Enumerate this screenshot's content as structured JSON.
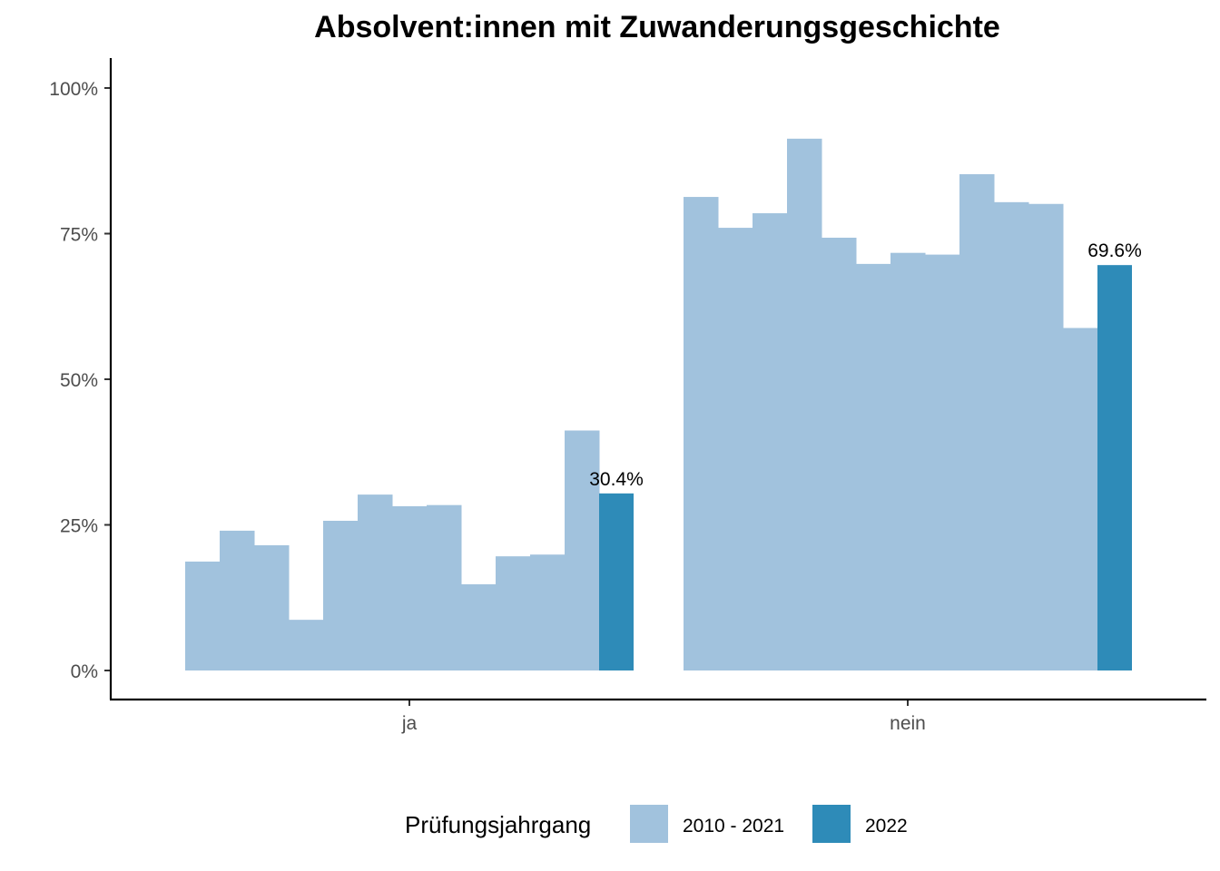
{
  "chart_data": {
    "type": "bar",
    "title": "Absolvent:innen mit Zuwanderungsgeschichte",
    "xlabel": "",
    "ylabel": "",
    "categories": [
      "ja",
      "nein"
    ],
    "ylim": [
      0,
      1
    ],
    "y_ticks": [
      {
        "value": 0,
        "label": "0%"
      },
      {
        "value": 0.25,
        "label": "25%"
      },
      {
        "value": 0.5,
        "label": "50%"
      },
      {
        "value": 0.75,
        "label": "75%"
      },
      {
        "value": 1,
        "label": "100%"
      }
    ],
    "grid": false,
    "legend": {
      "title": "Prüfungsjahrgang",
      "position": "bottom",
      "entries": [
        {
          "label": "2010 - 2021",
          "color": "#A1C2DD"
        },
        {
          "label": "2022",
          "color": "#2E8BB8"
        }
      ]
    },
    "groups": [
      {
        "category": "ja",
        "historic_values": [
          0.187,
          0.24,
          0.215,
          0.087,
          0.257,
          0.302,
          0.282,
          0.284,
          0.148,
          0.196,
          0.199,
          0.412
        ],
        "current_value": 0.304,
        "current_label": "30.4%"
      },
      {
        "category": "nein",
        "historic_values": [
          0.813,
          0.76,
          0.785,
          0.913,
          0.743,
          0.698,
          0.717,
          0.714,
          0.852,
          0.804,
          0.801,
          0.588
        ],
        "current_value": 0.696,
        "current_label": "69.6%"
      }
    ]
  }
}
